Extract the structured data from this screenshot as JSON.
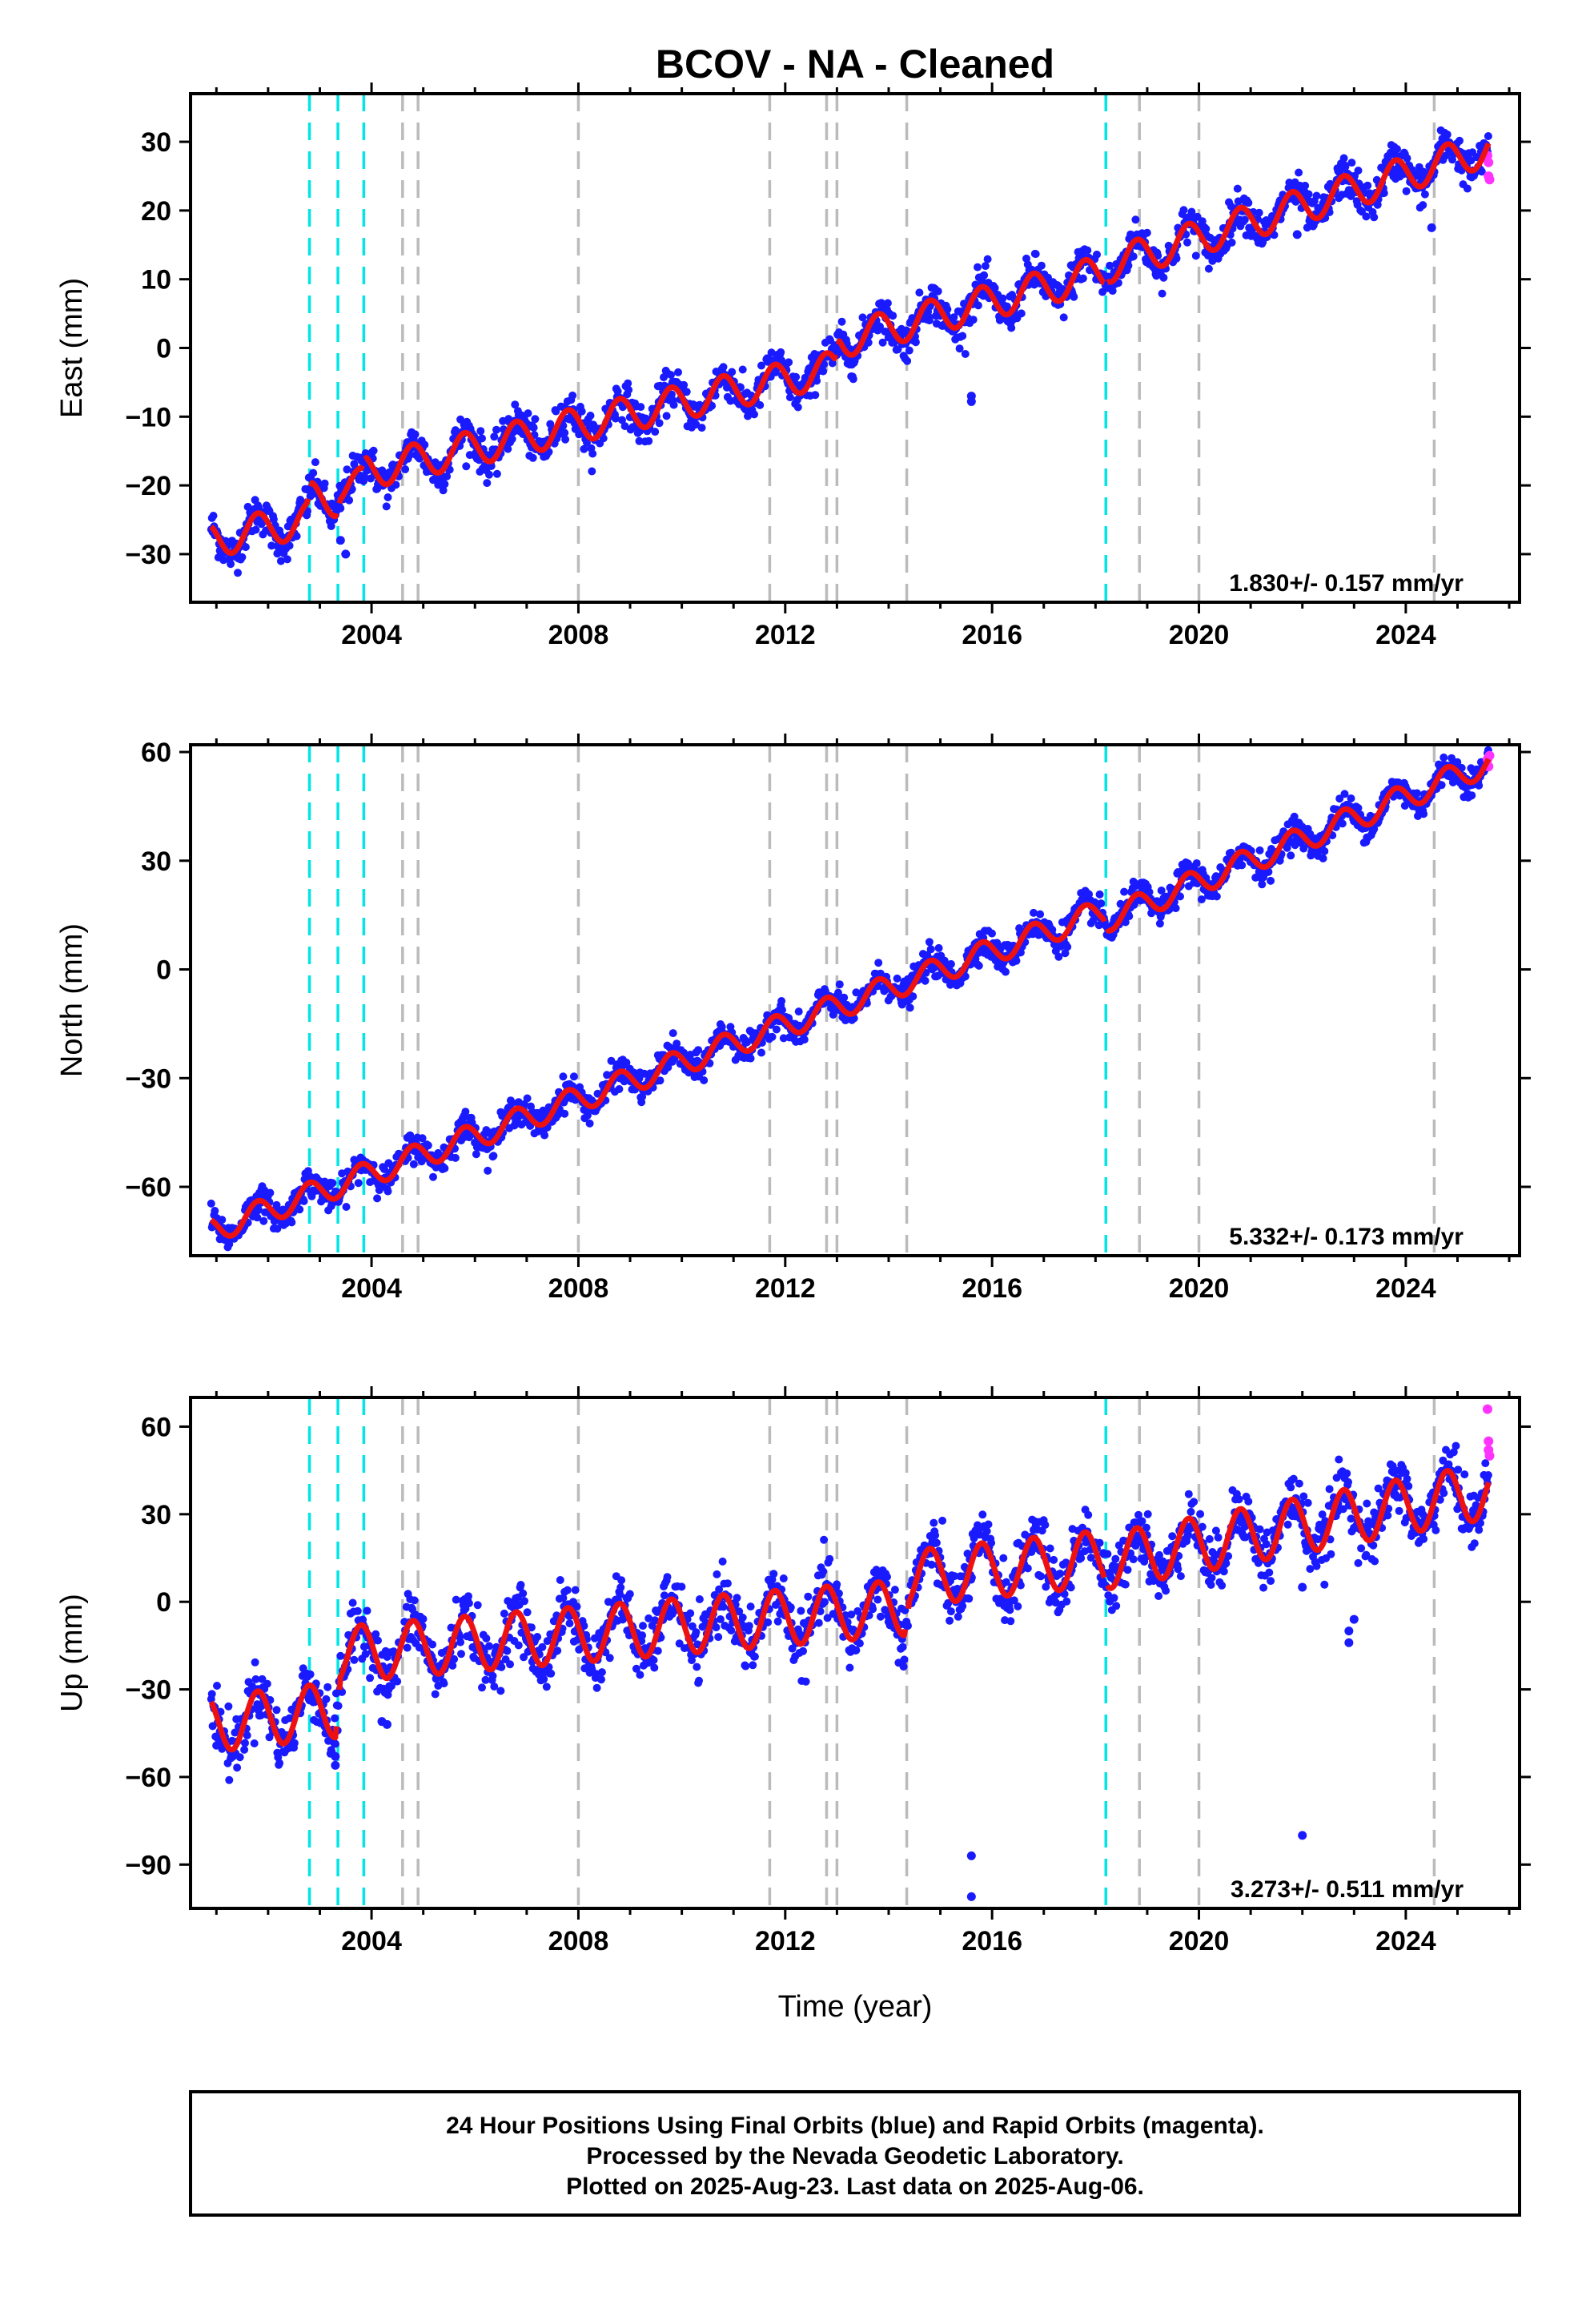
{
  "figure": {
    "title": "BCOV  - NA - Cleaned",
    "xlabel": "Time (year)",
    "caption": [
      "24 Hour Positions Using Final Orbits (blue) and Rapid Orbits (magenta).",
      "Processed by the Nevada Geodetic Laboratory.",
      "Plotted on 2025-Aug-23. Last data on 2025-Aug-06."
    ]
  },
  "colors": {
    "final": "#1a1aff",
    "rapid": "#ff33ff",
    "model": "#ee1111",
    "equipment_change": "#00e5e5",
    "other_event": "#bbbbbb"
  },
  "chart_data": [
    {
      "type": "scatter",
      "ylabel": "East (mm)",
      "xlim": [
        2000.5,
        2026.2
      ],
      "ylim": [
        -37,
        37
      ],
      "xticks": [
        2004,
        2008,
        2012,
        2016,
        2020,
        2024
      ],
      "yticks": [
        -30,
        -20,
        -10,
        0,
        10,
        20,
        30
      ],
      "rate": "1.830+/- 0.157 mm/yr",
      "grid": false,
      "model": {
        "breaks": [
          2002.8,
          2003.35,
          2003.85,
          2013.0,
          2018.2
        ],
        "knots": [
          [
            2000.9,
            -28
          ],
          [
            2002.75,
            -25
          ],
          [
            2002.85,
            -22
          ],
          [
            2003.3,
            -22
          ],
          [
            2003.4,
            -20
          ],
          [
            2003.8,
            -20
          ],
          [
            2003.9,
            -18
          ],
          [
            2012.95,
            -3
          ],
          [
            2013.05,
            1
          ],
          [
            2018.15,
            11
          ],
          [
            2018.25,
            12
          ],
          [
            2025.6,
            29
          ]
        ],
        "annual_amp": 2.5,
        "phase": 0.55,
        "noise": 1.4
      },
      "rapid_points": [
        [
          2025.58,
          28
        ],
        [
          2025.6,
          27
        ],
        [
          2025.6,
          25
        ],
        [
          2025.62,
          24.5
        ]
      ],
      "outliers": [
        [
          2015.6,
          -7
        ],
        [
          2015.6,
          -7.8
        ],
        [
          2021.9,
          16.5
        ],
        [
          2024.5,
          17.5
        ],
        [
          2003.5,
          -30
        ],
        [
          2003.4,
          -28
        ]
      ]
    },
    {
      "type": "scatter",
      "ylabel": "North (mm)",
      "xlim": [
        2000.5,
        2026.2
      ],
      "ylim": [
        -79,
        62
      ],
      "xticks": [
        2004,
        2008,
        2012,
        2016,
        2020,
        2024
      ],
      "yticks": [
        -60,
        -30,
        0,
        30,
        60
      ],
      "rate": "5.332+/- 0.173 mm/yr",
      "grid": false,
      "model": {
        "breaks": [
          2018.2
        ],
        "knots": [
          [
            2000.9,
            -72
          ],
          [
            2018.15,
            16
          ],
          [
            2018.25,
            14
          ],
          [
            2025.6,
            57
          ]
        ],
        "annual_amp": 3.5,
        "phase": 0.55,
        "noise": 2.0
      },
      "rapid_points": [
        [
          2025.58,
          58
        ],
        [
          2025.6,
          56
        ],
        [
          2025.62,
          59
        ]
      ],
      "outliers": []
    },
    {
      "type": "scatter",
      "ylabel": "Up (mm)",
      "xlim": [
        2000.5,
        2026.2
      ],
      "ylim": [
        -105,
        70
      ],
      "xticks": [
        2004,
        2008,
        2012,
        2016,
        2020,
        2024
      ],
      "yticks": [
        -90,
        -60,
        -30,
        0,
        30,
        60
      ],
      "rate": "3.273+/- 0.511 mm/yr",
      "grid": false,
      "model": {
        "breaks": [
          2003.35,
          2014.35,
          2018.2
        ],
        "knots": [
          [
            2000.9,
            -42
          ],
          [
            2003.3,
            -37
          ],
          [
            2003.4,
            -18
          ],
          [
            2014.3,
            -2
          ],
          [
            2014.4,
            8
          ],
          [
            2018.15,
            15
          ],
          [
            2018.25,
            14
          ],
          [
            2025.6,
            38
          ]
        ],
        "annual_amp": 9.5,
        "phase": 0.55,
        "noise": 5.0
      },
      "rapid_points": [
        [
          2025.58,
          66
        ],
        [
          2025.6,
          55
        ],
        [
          2025.6,
          52
        ],
        [
          2025.62,
          50
        ]
      ],
      "outliers": [
        [
          2015.6,
          -87
        ],
        [
          2015.6,
          -101
        ],
        [
          2022.0,
          -80
        ],
        [
          2022.0,
          5
        ],
        [
          2022.9,
          -10
        ],
        [
          2022.9,
          -14
        ],
        [
          2023.0,
          -6
        ],
        [
          2004.2,
          -41
        ],
        [
          2004.3,
          -42
        ],
        [
          2003.3,
          -53
        ],
        [
          2003.3,
          -56
        ]
      ]
    }
  ],
  "events": {
    "equipment_change": [
      2002.8,
      2003.35,
      2003.85,
      2018.2
    ],
    "other": [
      2004.6,
      2004.9,
      2008.0,
      2011.7,
      2012.8,
      2013.0,
      2014.35,
      2018.85,
      2020.0,
      2024.55
    ]
  }
}
